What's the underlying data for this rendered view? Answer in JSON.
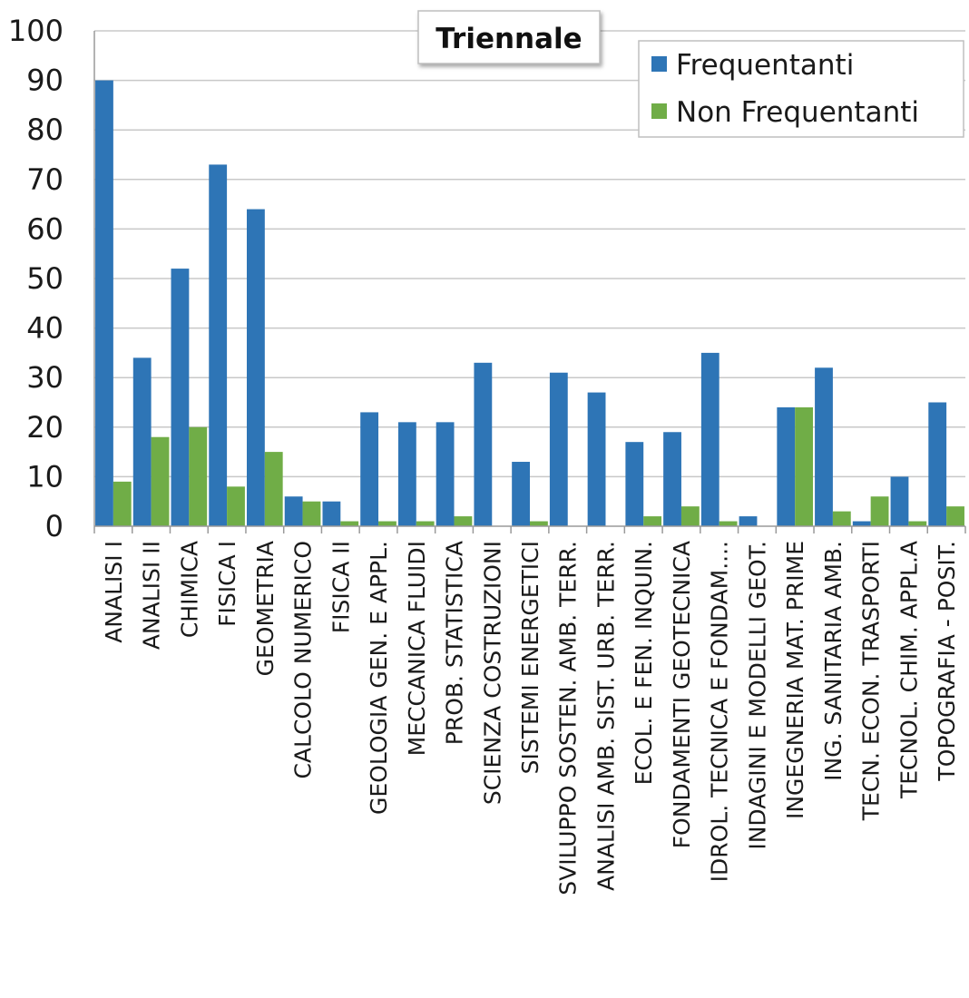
{
  "chart_data": {
    "type": "bar",
    "title": "Triennale",
    "xlabel": "",
    "ylabel": "",
    "ylim": [
      0,
      100
    ],
    "yticks": [
      0,
      10,
      20,
      30,
      40,
      50,
      60,
      70,
      80,
      90,
      100
    ],
    "grid": true,
    "legend_position": "top-right",
    "categories": [
      "ANALISI I",
      "ANALISI II",
      "CHIMICA",
      "FISICA I",
      "GEOMETRIA",
      "CALCOLO NUMERICO",
      "FISICA II",
      "GEOLOGIA GEN. E APPL.",
      "MECCANICA FLUIDI",
      "PROB. STATISTICA",
      "SCIENZA COSTRUZIONI",
      "SISTEMI ENERGETICI",
      "SVILUPPO SOSTEN. AMB. TERR.",
      "ANALISI AMB. SIST. URB. TERR.",
      "ECOL. E FEN. INQUIN.",
      "FONDAMENTI GEOTECNICA",
      "IDROL. TECNICA E FONDAM....",
      "INDAGINI E MODELLI GEOT.",
      "INGEGNERIA MAT. PRIME",
      "ING. SANITARIA AMB.",
      "TECN. ECON. TRASPORTI",
      "TECNOL. CHIM. APPL.A",
      "TOPOGRAFIA - POSIT."
    ],
    "series": [
      {
        "name": "Frequentanti",
        "color": "#2e75b6",
        "values": [
          90,
          34,
          52,
          73,
          64,
          6,
          5,
          23,
          21,
          21,
          33,
          13,
          31,
          27,
          17,
          19,
          35,
          2,
          24,
          32,
          1,
          10,
          25
        ]
      },
      {
        "name": "Non Frequentanti",
        "color": "#70ad47",
        "values": [
          9,
          18,
          20,
          8,
          15,
          5,
          1,
          1,
          1,
          2,
          0,
          1,
          0,
          0,
          2,
          4,
          1,
          0,
          24,
          3,
          6,
          1,
          4
        ]
      }
    ]
  }
}
